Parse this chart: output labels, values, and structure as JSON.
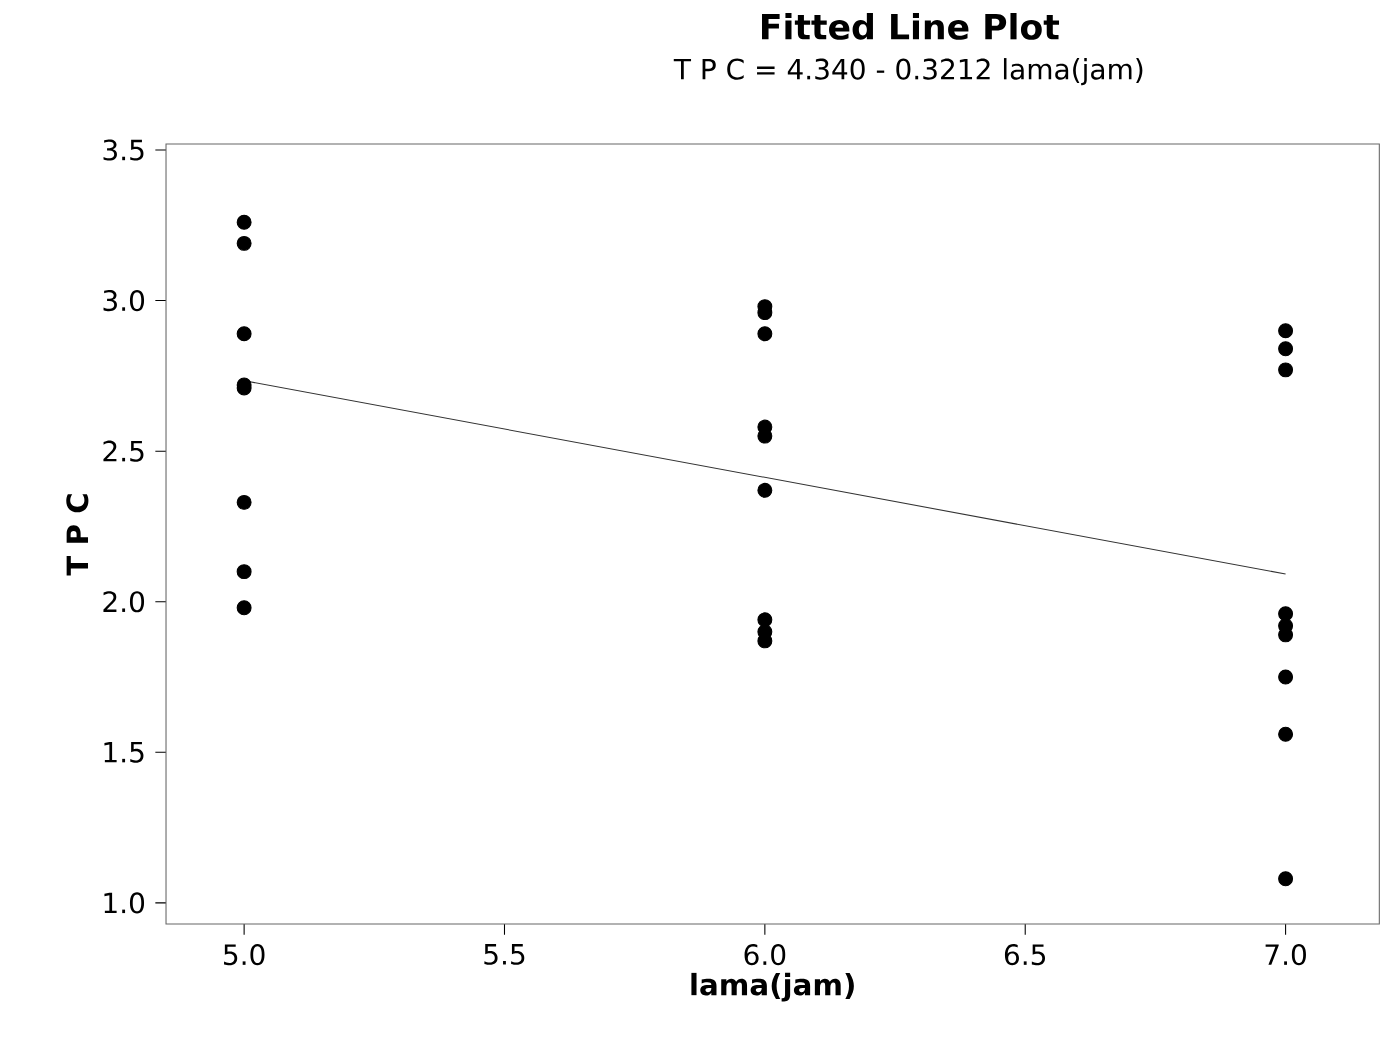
{
  "chart_data": {
    "type": "scatter",
    "title": "Fitted Line Plot",
    "subtitle": "T P C =  4.340 - 0.3212 lama(jam)",
    "xlabel": "lama(jam)",
    "ylabel": "T P C",
    "series": [
      {
        "color": "#000000",
        "marker": "circle",
        "x": [
          5,
          5,
          5,
          5,
          5,
          5,
          5,
          5,
          6,
          6,
          6,
          6,
          6,
          6,
          6,
          6,
          6,
          7,
          7,
          7,
          7,
          7,
          7,
          7,
          7,
          7
        ],
        "values": [
          3.26,
          3.19,
          2.89,
          2.72,
          2.71,
          2.33,
          2.1,
          1.98,
          2.98,
          2.96,
          2.89,
          2.58,
          2.55,
          2.37,
          1.94,
          1.9,
          1.87,
          2.9,
          2.84,
          2.77,
          1.96,
          1.92,
          1.89,
          1.75,
          1.56,
          1.08
        ]
      },
      {
        "type": "line",
        "color": "#333333",
        "marker": "none",
        "line_style": "solid",
        "x": [
          5,
          7
        ],
        "values": [
          2.734,
          2.092
        ]
      }
    ],
    "xlim": [
      4.85,
      7.18
    ],
    "ylim": [
      0.93,
      3.52
    ],
    "xticks": [
      {
        "value": 5,
        "label": "5.0"
      },
      {
        "value": 5.5,
        "label": "5.5"
      },
      {
        "value": 6,
        "label": "6.0"
      },
      {
        "value": 6.5,
        "label": "6.5"
      },
      {
        "value": 7,
        "label": "7.0"
      }
    ],
    "yticks": [
      {
        "value": 1,
        "label": "1.0"
      },
      {
        "value": 1.5,
        "label": "1.5"
      },
      {
        "value": 2,
        "label": "2.0"
      },
      {
        "value": 2.5,
        "label": "2.5"
      },
      {
        "value": 3,
        "label": "3.0"
      },
      {
        "value": 3.5,
        "label": "3.5"
      }
    ],
    "grid": false
  }
}
